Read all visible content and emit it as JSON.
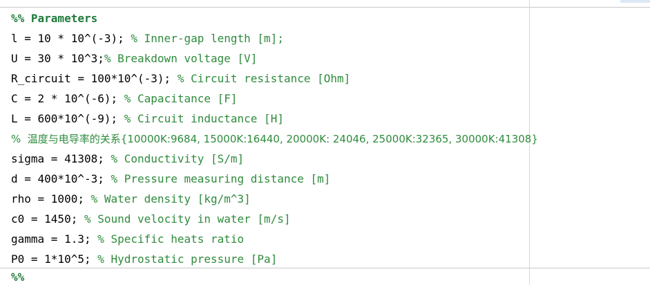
{
  "editor": {
    "lines": [
      {
        "kind": "section",
        "text": "%% Parameters"
      },
      {
        "kind": "code",
        "code": "l = 10 * 10^(-3); ",
        "comment": "% Inner-gap length [m];"
      },
      {
        "kind": "code",
        "code": "U = 30 * 10^3;",
        "comment": "% Breakdown voltage [V]"
      },
      {
        "kind": "code",
        "code": "R_circuit = 100*10^(-3); ",
        "comment": "% Circuit resistance [Ohm]"
      },
      {
        "kind": "code",
        "code": "C = 2 * 10^(-6); ",
        "comment": "% Capacitance [F]"
      },
      {
        "kind": "code",
        "code": "L = 600*10^(-9); ",
        "comment": "% Circuit inductance [H]"
      },
      {
        "kind": "comment-only",
        "comment": "%  温度与电导率的关系{10000K:9684, 15000K:16440, 20000K: 24046, 25000K:32365, 30000K:41308}"
      },
      {
        "kind": "code",
        "code": "sigma = 41308; ",
        "comment": "% Conductivity [S/m]"
      },
      {
        "kind": "code",
        "code": "d = 400*10^-3; ",
        "comment": "% Pressure measuring distance [m]"
      },
      {
        "kind": "code",
        "code": "rho = 1000; ",
        "comment": "% Water density [kg/m^3]"
      },
      {
        "kind": "code",
        "code": "c0 = 1450; ",
        "comment": "% Sound velocity in water [m/s]"
      },
      {
        "kind": "code",
        "code": "gamma = 1.3; ",
        "comment": "% Specific heats ratio"
      },
      {
        "kind": "code",
        "code": "P0 = 1*10^5; ",
        "comment": "% Hydrostatic pressure [Pa]"
      }
    ],
    "next_section": "%%"
  },
  "colors": {
    "comment": "#2e8b3c",
    "section": "#1e7b3a",
    "code": "#000000"
  }
}
